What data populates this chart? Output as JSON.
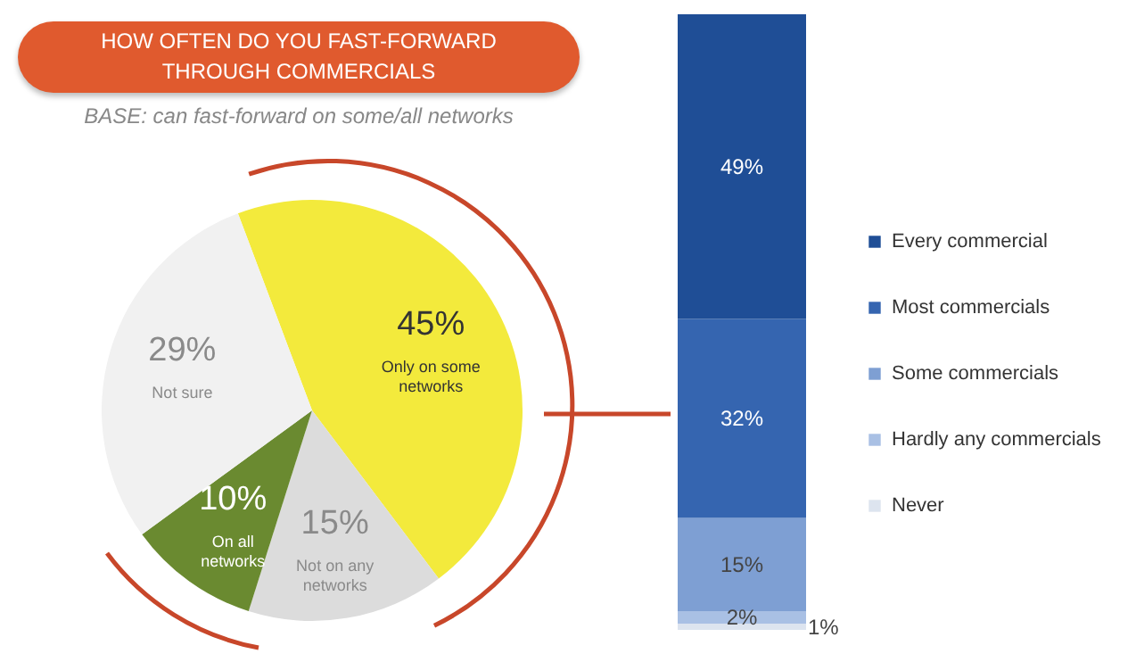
{
  "chart_data": [
    {
      "type": "pie",
      "title": "HOW OFTEN DO YOU FAST-FORWARD THROUGH COMMERCIALS",
      "subtitle": "BASE: can fast-forward on some/all networks",
      "categories": [
        "Only on some networks",
        "Not on any networks",
        "On all networks",
        "Not sure"
      ],
      "values": [
        45,
        15,
        10,
        29
      ],
      "value_labels": [
        "45%",
        "15%",
        "10%",
        "29%"
      ],
      "colors": [
        "#f3ea3c",
        "#dcdcdc",
        "#6a8a30",
        "#f1f1f1"
      ]
    },
    {
      "type": "bar",
      "stacked": true,
      "categories": [
        null
      ],
      "legend": "right",
      "series": [
        {
          "name": "Never",
          "color": "#dde4ef",
          "values": [
            1
          ],
          "value_labels": [
            "1%"
          ]
        },
        {
          "name": "Hardly any commercials",
          "color": "#a9c0e4",
          "values": [
            2
          ],
          "value_labels": [
            "2%"
          ]
        },
        {
          "name": "Some commercials",
          "color": "#7e9fd3",
          "values": [
            15
          ],
          "value_labels": [
            "15%"
          ]
        },
        {
          "name": "Most commercials",
          "color": "#3565b0",
          "values": [
            32
          ],
          "value_labels": [
            "32%"
          ]
        },
        {
          "name": "Every commercial",
          "color": "#1f4e96",
          "values": [
            49
          ],
          "value_labels": [
            "49%"
          ]
        }
      ]
    }
  ]
}
